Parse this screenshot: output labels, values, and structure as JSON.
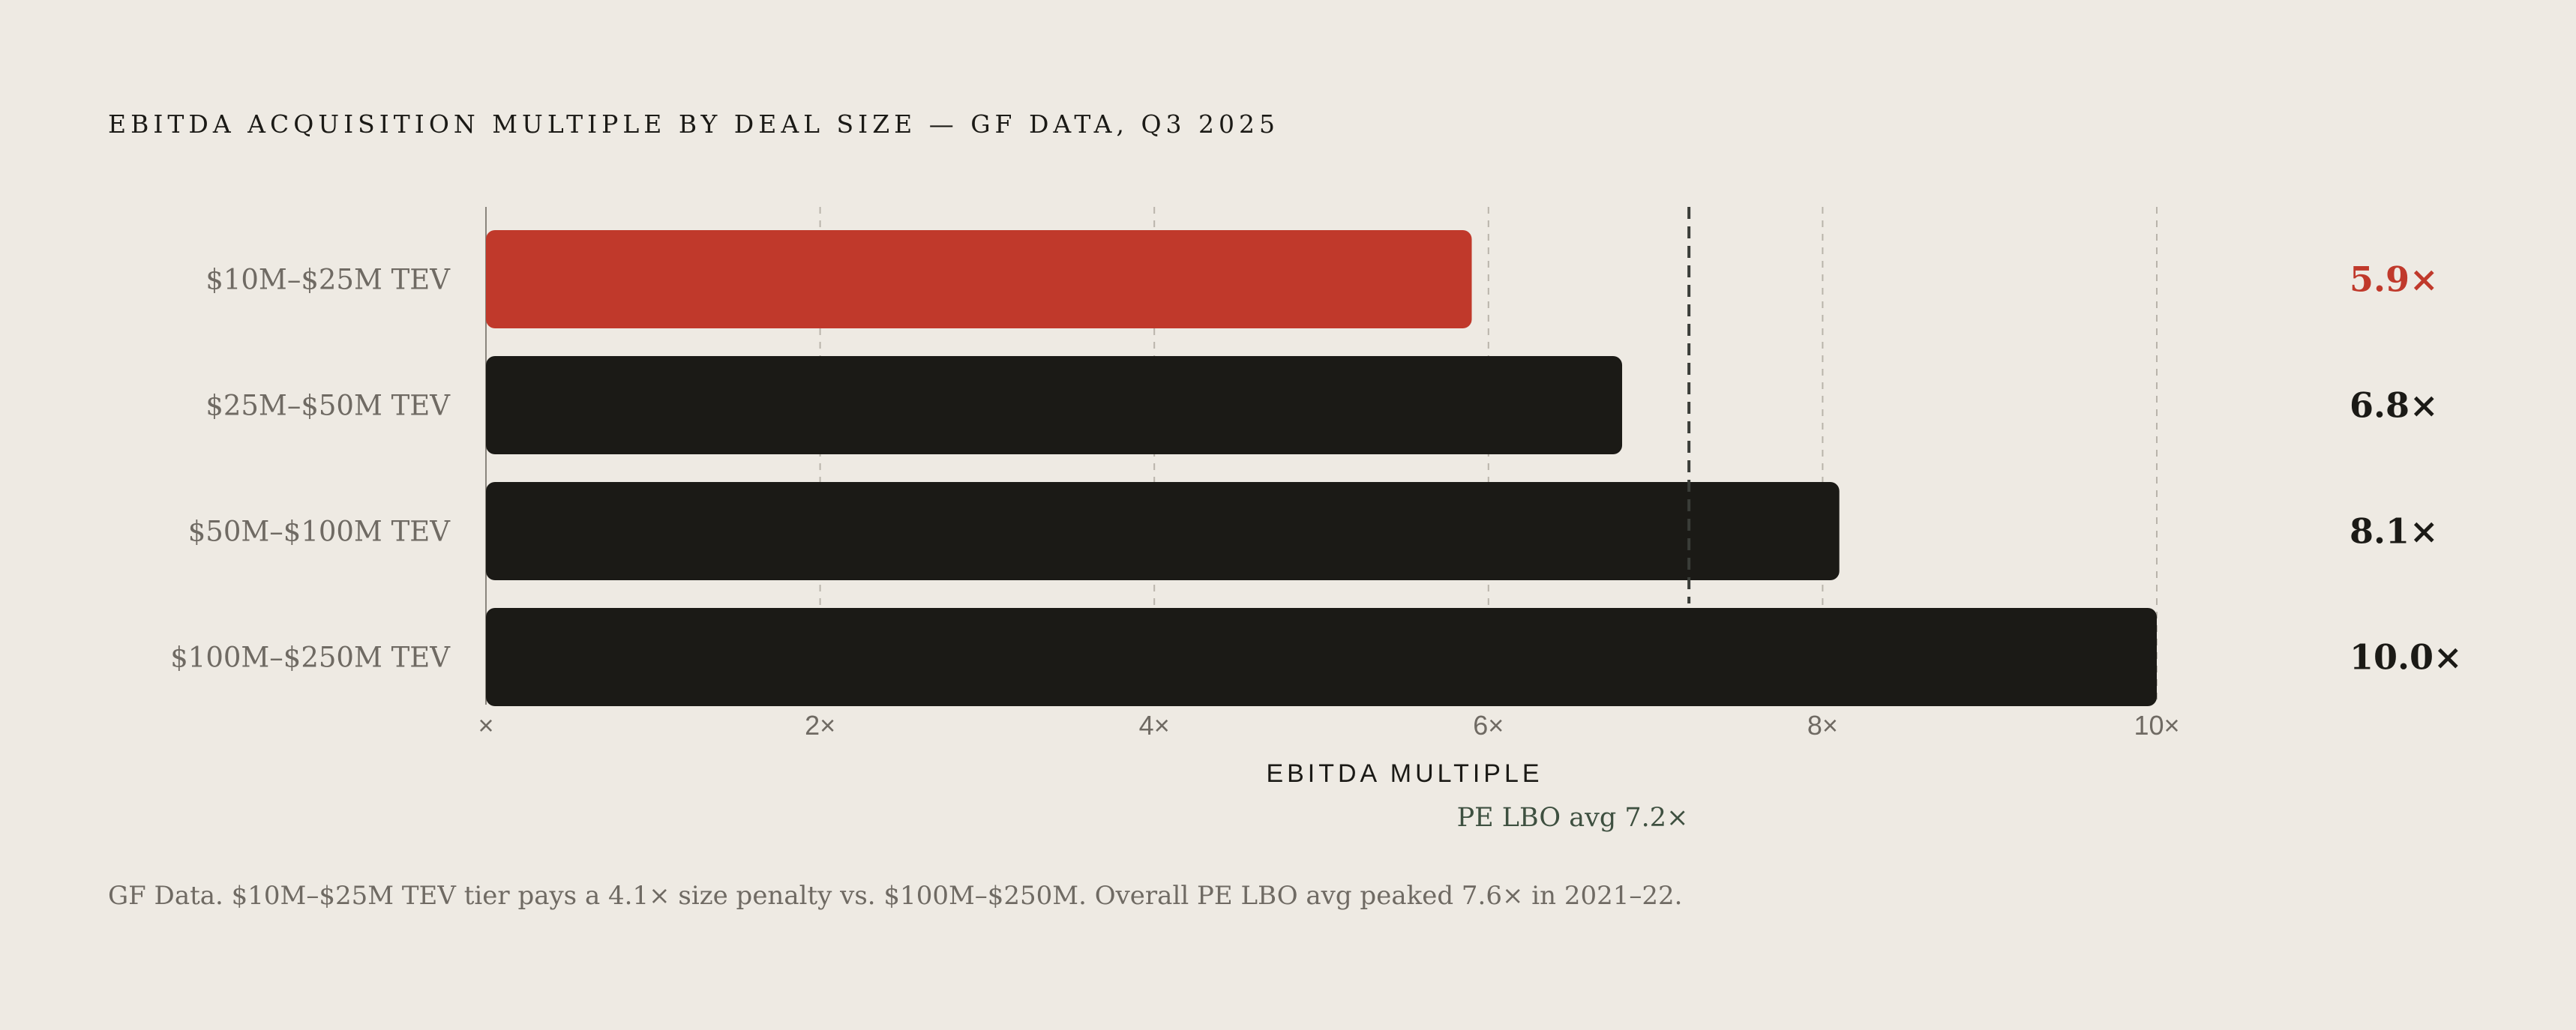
{
  "title": "EBITDA ACQUISITION MULTIPLE BY DEAL SIZE — GF DATA, Q3 2025",
  "footnote": "GF Data. $10M–$25M TEV tier pays a 4.1× size penalty vs. $100M–$250M. Overall PE LBO avg peaked 7.6× in 2021–22.",
  "colors": {
    "background": "#eeeae3",
    "highlight": "#c0392b",
    "bar": "#1b1a16",
    "reference": "#3a3d38",
    "grid": "#b9b4ab"
  },
  "chart_data": {
    "type": "bar",
    "orientation": "horizontal",
    "title": "EBITDA ACQUISITION MULTIPLE BY DEAL SIZE — GF DATA, Q3 2025",
    "xlabel": "EBITDA MULTIPLE",
    "ylabel": "",
    "xlim": [
      0,
      10
    ],
    "x_ticks": [
      0,
      2,
      4,
      6,
      8,
      10
    ],
    "x_tick_labels": [
      "×",
      "2×",
      "4×",
      "6×",
      "8×",
      "10×"
    ],
    "grid": "vertical dashed",
    "categories": [
      "$10M–$25M TEV",
      "$25M–$50M TEV",
      "$50M–$100M TEV",
      "$100M–$250M TEV"
    ],
    "values": [
      5.9,
      6.8,
      8.1,
      10.0
    ],
    "value_labels": [
      "5.9×",
      "6.8×",
      "8.1×",
      "10.0×"
    ],
    "highlight_index": 0,
    "reference_line": {
      "value": 7.2,
      "label": "PE LBO avg 7.2×"
    }
  }
}
